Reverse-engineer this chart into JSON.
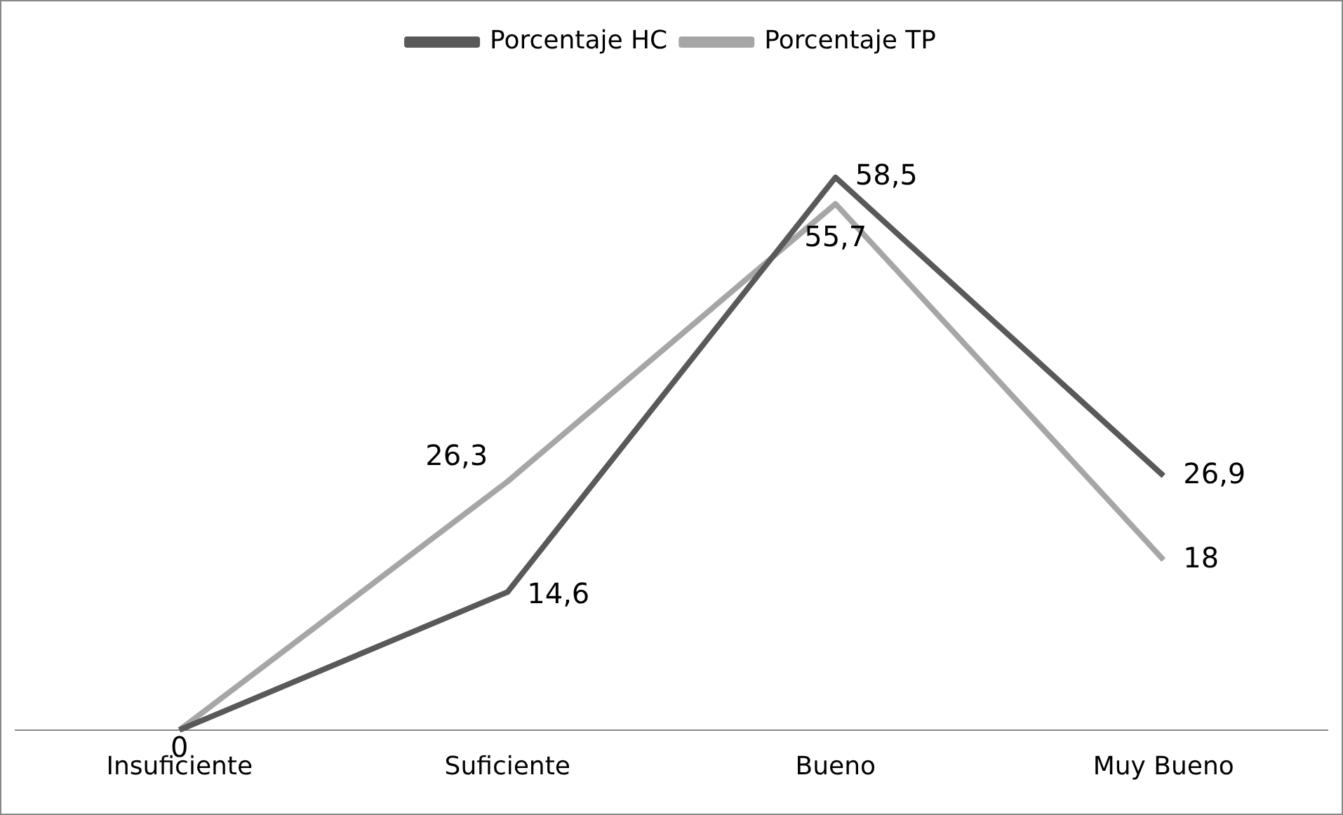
{
  "chart_data": {
    "type": "line",
    "categories": [
      "Insuficiente",
      "Suficiente",
      "Bueno",
      "Muy Bueno"
    ],
    "series": [
      {
        "name": "Porcentaje HC",
        "color": "#595959",
        "values": [
          0,
          14.6,
          58.5,
          26.9
        ],
        "value_labels": [
          "0",
          "14,6",
          "58,5",
          "26,9"
        ]
      },
      {
        "name": "Porcentaje TP",
        "color": "#a6a6a6",
        "values": [
          0,
          26.3,
          55.7,
          18
        ],
        "value_labels": [
          null,
          "26,3",
          "55,7",
          "18"
        ]
      }
    ],
    "legend": "top",
    "grid": false,
    "marker": "none",
    "line_style": "solid"
  }
}
